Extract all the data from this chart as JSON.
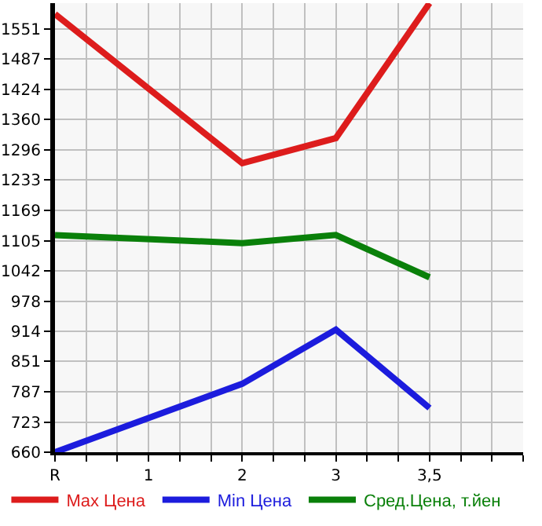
{
  "chart_data": {
    "type": "line",
    "categories": [
      "R",
      "1",
      "2",
      "3",
      "3,5"
    ],
    "series": [
      {
        "name": "Max Цена",
        "color": "#dd1c1c",
        "values": [
          1582,
          null,
          1268,
          1321,
          1605
        ]
      },
      {
        "name": "Min Цена",
        "color": "#1c1cdd",
        "values": [
          660,
          null,
          804,
          918,
          753
        ]
      },
      {
        "name": "Сред.Цена, т.йен",
        "color": "#0a800a",
        "values": [
          1117,
          null,
          1100,
          1117,
          1028
        ]
      }
    ],
    "ylim": [
      660,
      1605
    ],
    "yticks": [
      660,
      723,
      787,
      851,
      914,
      978,
      1042,
      1105,
      1169,
      1233,
      1296,
      1360,
      1424,
      1487,
      1551
    ],
    "grid": true,
    "legend": "bottom",
    "marker": "none",
    "line_style": "solid"
  }
}
